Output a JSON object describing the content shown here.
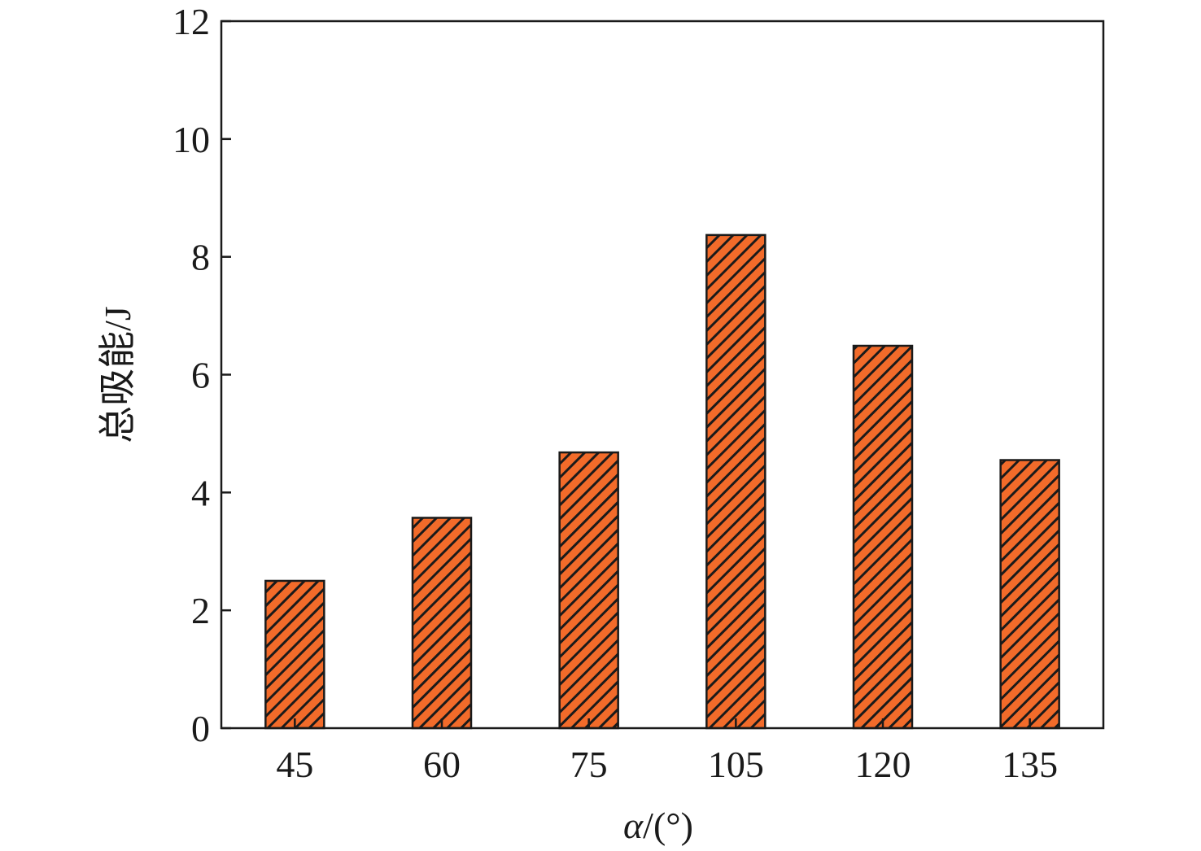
{
  "chart_data": {
    "type": "bar",
    "categories": [
      "45",
      "60",
      "75",
      "105",
      "120",
      "135"
    ],
    "values": [
      2.5,
      3.57,
      4.68,
      8.37,
      6.49,
      4.55
    ],
    "xlabel_symbol": "α",
    "xlabel_unit": "/(°)",
    "ylabel": "总吸能/J",
    "ylim": [
      0,
      12
    ],
    "yticks": [
      "0",
      "2",
      "4",
      "6",
      "8",
      "10",
      "12"
    ],
    "grid": false,
    "legend": "none",
    "bar_fill": "#f26b2a",
    "hatch_color": "#1a1a1a",
    "bar_edge": "#1a1a1a"
  }
}
